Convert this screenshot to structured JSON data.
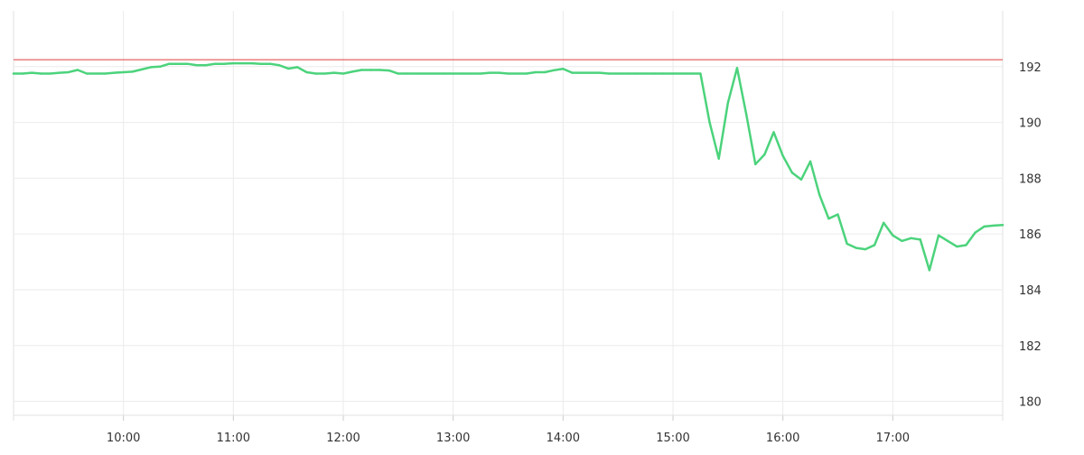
{
  "chart_data": {
    "type": "line",
    "title": "",
    "xlabel": "",
    "ylabel": "",
    "x_unit": "time",
    "x_range": [
      "09:00",
      "18:00"
    ],
    "ylim": [
      179.5,
      194
    ],
    "y_axis_position": "right",
    "grid": true,
    "reference_line": {
      "value": 192.25,
      "color": "#e03b3b"
    },
    "x_ticks": [
      "10:00",
      "11:00",
      "12:00",
      "13:00",
      "14:00",
      "15:00",
      "16:00",
      "17:00"
    ],
    "y_ticks": [
      180,
      182,
      184,
      186,
      188,
      190,
      192
    ],
    "colors": {
      "line": "#4cd37c",
      "grid": "#ebebeb",
      "axis_text": "#333333",
      "reference": "#e03b3b"
    },
    "series": [
      {
        "points": [
          [
            "09:00",
            191.75
          ],
          [
            "09:05",
            191.75
          ],
          [
            "09:10",
            191.78
          ],
          [
            "09:15",
            191.75
          ],
          [
            "09:20",
            191.75
          ],
          [
            "09:25",
            191.78
          ],
          [
            "09:30",
            191.8
          ],
          [
            "09:35",
            191.88
          ],
          [
            "09:40",
            191.75
          ],
          [
            "09:45",
            191.75
          ],
          [
            "09:50",
            191.75
          ],
          [
            "09:55",
            191.78
          ],
          [
            "10:00",
            191.8
          ],
          [
            "10:05",
            191.82
          ],
          [
            "10:10",
            191.9
          ],
          [
            "10:15",
            191.98
          ],
          [
            "10:20",
            192.0
          ],
          [
            "10:25",
            192.1
          ],
          [
            "10:30",
            192.1
          ],
          [
            "10:35",
            192.1
          ],
          [
            "10:40",
            192.05
          ],
          [
            "10:45",
            192.05
          ],
          [
            "10:50",
            192.1
          ],
          [
            "10:55",
            192.1
          ],
          [
            "11:00",
            192.12
          ],
          [
            "11:05",
            192.12
          ],
          [
            "11:10",
            192.12
          ],
          [
            "11:15",
            192.1
          ],
          [
            "11:20",
            192.1
          ],
          [
            "11:25",
            192.05
          ],
          [
            "11:30",
            191.93
          ],
          [
            "11:35",
            191.98
          ],
          [
            "11:40",
            191.8
          ],
          [
            "11:45",
            191.75
          ],
          [
            "11:50",
            191.75
          ],
          [
            "11:55",
            191.78
          ],
          [
            "12:00",
            191.75
          ],
          [
            "12:05",
            191.82
          ],
          [
            "12:10",
            191.88
          ],
          [
            "12:15",
            191.88
          ],
          [
            "12:20",
            191.88
          ],
          [
            "12:25",
            191.86
          ],
          [
            "12:30",
            191.75
          ],
          [
            "12:35",
            191.75
          ],
          [
            "12:40",
            191.75
          ],
          [
            "12:45",
            191.75
          ],
          [
            "12:50",
            191.75
          ],
          [
            "12:55",
            191.75
          ],
          [
            "13:00",
            191.75
          ],
          [
            "13:05",
            191.75
          ],
          [
            "13:10",
            191.75
          ],
          [
            "13:15",
            191.75
          ],
          [
            "13:20",
            191.78
          ],
          [
            "13:25",
            191.78
          ],
          [
            "13:30",
            191.75
          ],
          [
            "13:35",
            191.75
          ],
          [
            "13:40",
            191.75
          ],
          [
            "13:45",
            191.8
          ],
          [
            "13:50",
            191.8
          ],
          [
            "13:55",
            191.87
          ],
          [
            "14:00",
            191.92
          ],
          [
            "14:05",
            191.78
          ],
          [
            "14:10",
            191.78
          ],
          [
            "14:15",
            191.78
          ],
          [
            "14:20",
            191.78
          ],
          [
            "14:25",
            191.75
          ],
          [
            "14:30",
            191.75
          ],
          [
            "14:35",
            191.75
          ],
          [
            "14:40",
            191.75
          ],
          [
            "14:45",
            191.75
          ],
          [
            "14:50",
            191.75
          ],
          [
            "14:55",
            191.75
          ],
          [
            "15:00",
            191.75
          ],
          [
            "15:05",
            191.75
          ],
          [
            "15:10",
            191.75
          ],
          [
            "15:15",
            191.75
          ],
          [
            "15:20",
            190.0
          ],
          [
            "15:25",
            188.7
          ],
          [
            "15:30",
            190.7
          ],
          [
            "15:35",
            191.95
          ],
          [
            "15:40",
            190.3
          ],
          [
            "15:45",
            188.5
          ],
          [
            "15:50",
            188.85
          ],
          [
            "15:55",
            189.65
          ],
          [
            "16:00",
            188.8
          ],
          [
            "16:05",
            188.2
          ],
          [
            "16:10",
            187.95
          ],
          [
            "16:15",
            188.6
          ],
          [
            "16:20",
            187.4
          ],
          [
            "16:25",
            186.55
          ],
          [
            "16:30",
            186.7
          ],
          [
            "16:35",
            185.65
          ],
          [
            "16:40",
            185.5
          ],
          [
            "16:45",
            185.45
          ],
          [
            "16:50",
            185.6
          ],
          [
            "16:55",
            186.4
          ],
          [
            "17:00",
            185.95
          ],
          [
            "17:05",
            185.75
          ],
          [
            "17:10",
            185.85
          ],
          [
            "17:15",
            185.8
          ],
          [
            "17:20",
            184.7
          ],
          [
            "17:25",
            185.95
          ],
          [
            "17:30",
            185.75
          ],
          [
            "17:35",
            185.55
          ],
          [
            "17:40",
            185.6
          ],
          [
            "17:45",
            186.05
          ],
          [
            "17:50",
            186.27
          ],
          [
            "17:55",
            186.3
          ],
          [
            "18:00",
            186.32
          ]
        ]
      }
    ]
  }
}
